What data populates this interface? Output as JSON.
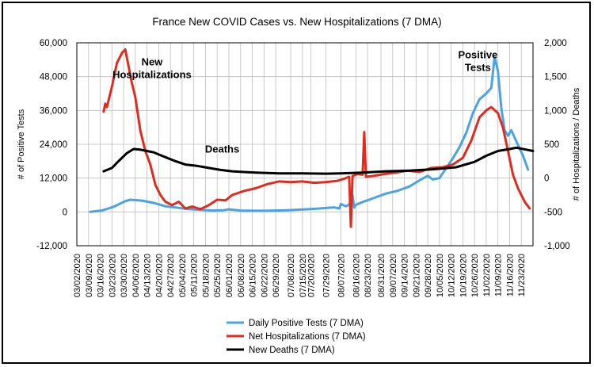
{
  "chart_data": {
    "type": "line",
    "title": "France New COVID Cases vs. New Hospitalizations (7 DMA)",
    "ylabel_left": "# of Positive Tests",
    "ylabel_right": "# of Hospitalizations / Deaths",
    "ylim_left": [
      -12000,
      60000
    ],
    "ylim_right": [
      -1000,
      2000
    ],
    "yticks_left": [
      "-12,000",
      "0",
      "12,000",
      "24,000",
      "36,000",
      "48,000",
      "60,000"
    ],
    "yticks_right": [
      "-1,000",
      "-500",
      "0",
      "500",
      "1,000",
      "1,500",
      "2,000"
    ],
    "x_range": [
      "03/02/2020",
      "11/30/2020"
    ],
    "xticks": [
      "03/02/2020",
      "03/09/2020",
      "03/16/2020",
      "03/23/2020",
      "03/30/2020",
      "04/06/2020",
      "04/13/2020",
      "04/20/2020",
      "04/27/2020",
      "05/04/2020",
      "05/11/2020",
      "05/18/2020",
      "05/25/2020",
      "06/01/2020",
      "06/08/2020",
      "06/15/2020",
      "06/22/2020",
      "06/29/2020",
      "07/08/2020",
      "07/15/2020",
      "07/20/2020",
      "07/29/2020",
      "08/07/2020",
      "08/16/2020",
      "08/23/2020",
      "08/31/2020",
      "09/07/2020",
      "09/14/2020",
      "09/21/2020",
      "09/28/2020",
      "10/05/2020",
      "10/12/2020",
      "10/19/2020",
      "10/26/2020",
      "11/02/2020",
      "11/09/2020",
      "11/16/2020",
      "11/23/2020"
    ],
    "grid": true,
    "legend_placement": "bottom-center",
    "annotations": [
      {
        "text": "New Hospitalizations",
        "date": "04/16/2020",
        "value_left": 52000
      },
      {
        "text": "Deaths",
        "date": "05/28/2020",
        "value_left": 21000
      },
      {
        "text": "Positive Tests",
        "date": "10/28/2020",
        "value_left": 54500
      }
    ],
    "series": [
      {
        "name": "Daily Positive Tests (7 DMA)",
        "axis": "left",
        "color": "#4ba3e3",
        "points": [
          [
            "03/10/2020",
            0
          ],
          [
            "03/17/2020",
            500
          ],
          [
            "03/24/2020",
            1800
          ],
          [
            "03/31/2020",
            3800
          ],
          [
            "04/03/2020",
            4300
          ],
          [
            "04/10/2020",
            4000
          ],
          [
            "04/17/2020",
            3200
          ],
          [
            "04/24/2020",
            2000
          ],
          [
            "05/01/2020",
            1500
          ],
          [
            "05/08/2020",
            1000
          ],
          [
            "05/15/2020",
            700
          ],
          [
            "05/22/2020",
            500
          ],
          [
            "05/29/2020",
            600
          ],
          [
            "06/01/2020",
            900
          ],
          [
            "06/08/2020",
            500
          ],
          [
            "06/15/2020",
            400
          ],
          [
            "06/22/2020",
            400
          ],
          [
            "06/29/2020",
            500
          ],
          [
            "07/06/2020",
            600
          ],
          [
            "07/13/2020",
            800
          ],
          [
            "07/20/2020",
            1000
          ],
          [
            "07/27/2020",
            1300
          ],
          [
            "08/03/2020",
            1600
          ],
          [
            "08/06/2020",
            1200
          ],
          [
            "08/07/2020",
            2800
          ],
          [
            "08/10/2020",
            2000
          ],
          [
            "08/12/2020",
            2600
          ],
          [
            "08/14/2020",
            6000
          ],
          [
            "08/15/2020",
            1500
          ],
          [
            "08/16/2020",
            2500
          ],
          [
            "08/20/2020",
            3500
          ],
          [
            "08/27/2020",
            5000
          ],
          [
            "09/03/2020",
            6500
          ],
          [
            "09/10/2020",
            7500
          ],
          [
            "09/17/2020",
            9000
          ],
          [
            "09/24/2020",
            11500
          ],
          [
            "09/28/2020",
            12800
          ],
          [
            "10/01/2020",
            11500
          ],
          [
            "10/05/2020",
            12000
          ],
          [
            "10/09/2020",
            15500
          ],
          [
            "10/13/2020",
            19000
          ],
          [
            "10/17/2020",
            23000
          ],
          [
            "10/21/2020",
            28000
          ],
          [
            "10/25/2020",
            35000
          ],
          [
            "10/29/2020",
            40000
          ],
          [
            "11/02/2020",
            42000
          ],
          [
            "11/05/2020",
            44000
          ],
          [
            "11/07/2020",
            55000
          ],
          [
            "11/09/2020",
            50000
          ],
          [
            "11/11/2020",
            37000
          ],
          [
            "11/13/2020",
            29000
          ],
          [
            "11/15/2020",
            27000
          ],
          [
            "11/17/2020",
            29000
          ],
          [
            "11/20/2020",
            25000
          ],
          [
            "11/24/2020",
            20000
          ],
          [
            "11/27/2020",
            15000
          ]
        ]
      },
      {
        "name": "Net Hospitalizations (7 DMA)",
        "axis": "right",
        "color": "#e02b1f",
        "points": [
          [
            "03/18/2020",
            980
          ],
          [
            "03/19/2020",
            1100
          ],
          [
            "03/20/2020",
            1050
          ],
          [
            "03/21/2020",
            1150
          ],
          [
            "03/23/2020",
            1350
          ],
          [
            "03/26/2020",
            1700
          ],
          [
            "03/29/2020",
            1850
          ],
          [
            "03/31/2020",
            1900
          ],
          [
            "04/02/2020",
            1650
          ],
          [
            "04/04/2020",
            1400
          ],
          [
            "04/06/2020",
            1200
          ],
          [
            "04/09/2020",
            700
          ],
          [
            "04/12/2020",
            400
          ],
          [
            "04/15/2020",
            200
          ],
          [
            "04/18/2020",
            -100
          ],
          [
            "04/21/2020",
            -250
          ],
          [
            "04/24/2020",
            -350
          ],
          [
            "04/28/2020",
            -400
          ],
          [
            "05/02/2020",
            -350
          ],
          [
            "05/06/2020",
            -450
          ],
          [
            "05/10/2020",
            -420
          ],
          [
            "05/15/2020",
            -460
          ],
          [
            "05/20/2020",
            -400
          ],
          [
            "05/25/2020",
            -320
          ],
          [
            "05/30/2020",
            -330
          ],
          [
            "06/03/2020",
            -250
          ],
          [
            "06/10/2020",
            -190
          ],
          [
            "06/17/2020",
            -150
          ],
          [
            "06/24/2020",
            -90
          ],
          [
            "07/01/2020",
            -50
          ],
          [
            "07/08/2020",
            -60
          ],
          [
            "07/15/2020",
            -50
          ],
          [
            "07/22/2020",
            -70
          ],
          [
            "07/29/2020",
            -60
          ],
          [
            "08/05/2020",
            -40
          ],
          [
            "08/09/2020",
            -10
          ],
          [
            "08/12/2020",
            20
          ],
          [
            "08/13/2020",
            -720
          ],
          [
            "08/14/2020",
            30
          ],
          [
            "08/17/2020",
            60
          ],
          [
            "08/20/2020",
            50
          ],
          [
            "08/21/2020",
            680
          ],
          [
            "08/22/2020",
            20
          ],
          [
            "08/26/2020",
            30
          ],
          [
            "09/02/2020",
            60
          ],
          [
            "09/09/2020",
            80
          ],
          [
            "09/16/2020",
            110
          ],
          [
            "09/23/2020",
            90
          ],
          [
            "09/30/2020",
            150
          ],
          [
            "10/07/2020",
            160
          ],
          [
            "10/13/2020",
            200
          ],
          [
            "10/19/2020",
            300
          ],
          [
            "10/24/2020",
            550
          ],
          [
            "10/29/2020",
            900
          ],
          [
            "11/02/2020",
            1000
          ],
          [
            "11/05/2020",
            1050
          ],
          [
            "11/09/2020",
            960
          ],
          [
            "11/12/2020",
            750
          ],
          [
            "11/15/2020",
            400
          ],
          [
            "11/18/2020",
            50
          ],
          [
            "11/21/2020",
            -150
          ],
          [
            "11/25/2020",
            -350
          ],
          [
            "11/28/2020",
            -450
          ]
        ]
      },
      {
        "name": "New Deaths (7 DMA)",
        "axis": "right",
        "color": "#000000",
        "points": [
          [
            "03/18/2020",
            100
          ],
          [
            "03/23/2020",
            150
          ],
          [
            "03/27/2020",
            250
          ],
          [
            "04/01/2020",
            370
          ],
          [
            "04/05/2020",
            430
          ],
          [
            "04/09/2020",
            420
          ],
          [
            "04/13/2020",
            400
          ],
          [
            "04/17/2020",
            380
          ],
          [
            "04/21/2020",
            340
          ],
          [
            "04/25/2020",
            300
          ],
          [
            "04/30/2020",
            250
          ],
          [
            "05/06/2020",
            200
          ],
          [
            "05/13/2020",
            180
          ],
          [
            "05/20/2020",
            150
          ],
          [
            "05/27/2020",
            120
          ],
          [
            "06/03/2020",
            100
          ],
          [
            "06/10/2020",
            90
          ],
          [
            "06/17/2020",
            80
          ],
          [
            "06/24/2020",
            75
          ],
          [
            "07/01/2020",
            70
          ],
          [
            "07/15/2020",
            70
          ],
          [
            "07/29/2020",
            65
          ],
          [
            "08/07/2020",
            70
          ],
          [
            "08/20/2020",
            80
          ],
          [
            "09/03/2020",
            100
          ],
          [
            "09/17/2020",
            110
          ],
          [
            "10/01/2020",
            130
          ],
          [
            "10/15/2020",
            160
          ],
          [
            "10/26/2020",
            240
          ],
          [
            "11/02/2020",
            330
          ],
          [
            "11/09/2020",
            400
          ],
          [
            "11/16/2020",
            430
          ],
          [
            "11/20/2020",
            450
          ],
          [
            "11/26/2020",
            420
          ],
          [
            "11/30/2020",
            400
          ]
        ]
      }
    ]
  }
}
